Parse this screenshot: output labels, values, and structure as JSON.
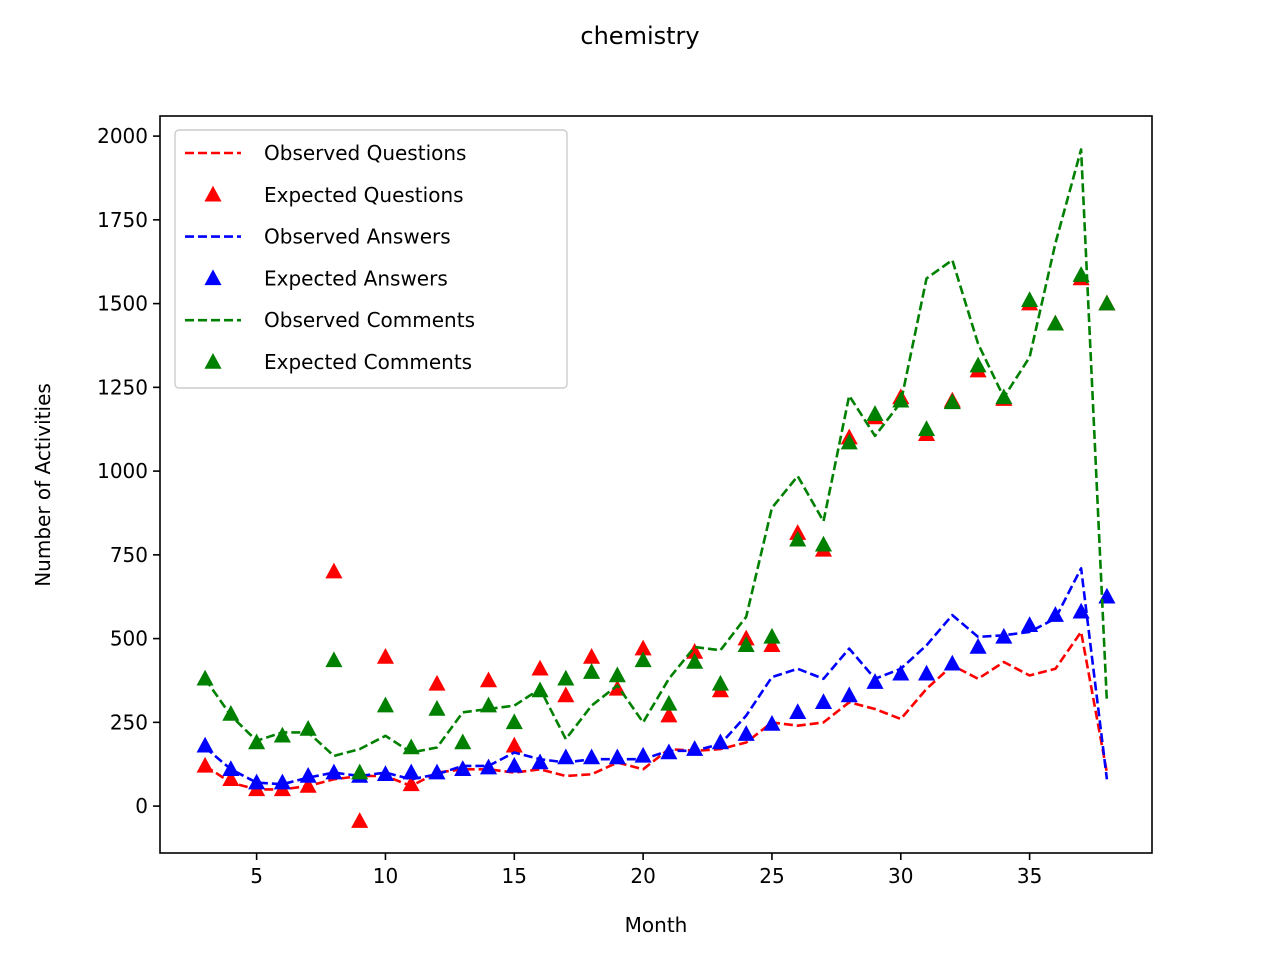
{
  "chart_data": {
    "type": "line",
    "title": "chemistry",
    "xlabel": "Month",
    "ylabel": "Number of Activities",
    "xlim": [
      1.25,
      39.75
    ],
    "ylim": [
      -140,
      2060
    ],
    "xticks": [
      5,
      10,
      15,
      20,
      25,
      30,
      35
    ],
    "yticks": [
      0,
      250,
      500,
      750,
      1000,
      1250,
      1500,
      1750,
      2000
    ],
    "grid": false,
    "legend_position": "upper-left",
    "x": [
      3,
      4,
      5,
      6,
      7,
      8,
      9,
      10,
      11,
      12,
      13,
      14,
      15,
      16,
      17,
      18,
      19,
      20,
      21,
      22,
      23,
      24,
      25,
      26,
      27,
      28,
      29,
      30,
      31,
      32,
      33,
      34,
      35,
      36,
      37,
      38
    ],
    "series": [
      {
        "name": "Observed Questions",
        "style": "dashed",
        "color": "#ff0000",
        "values": [
          120,
          70,
          50,
          50,
          60,
          80,
          90,
          90,
          60,
          100,
          110,
          110,
          100,
          110,
          90,
          95,
          130,
          110,
          170,
          165,
          170,
          190,
          250,
          240,
          250,
          310,
          290,
          260,
          350,
          420,
          380,
          430,
          390,
          410,
          520,
          100
        ]
      },
      {
        "name": "Expected Questions",
        "style": "triangle",
        "color": "#ff0000",
        "values": [
          120,
          80,
          50,
          50,
          60,
          700,
          -45,
          445,
          65,
          365,
          110,
          375,
          180,
          410,
          330,
          445,
          350,
          470,
          270,
          460,
          345,
          500,
          480,
          815,
          765,
          1100,
          1160,
          1220,
          1110,
          1210,
          1300,
          1215,
          1500,
          1440,
          1575,
          1500
        ]
      },
      {
        "name": "Observed Answers",
        "style": "dashed",
        "color": "#0000ff",
        "values": [
          175,
          110,
          70,
          65,
          85,
          100,
          90,
          100,
          80,
          95,
          120,
          120,
          160,
          140,
          130,
          140,
          140,
          140,
          165,
          165,
          185,
          270,
          385,
          410,
          380,
          470,
          380,
          410,
          480,
          570,
          505,
          510,
          520,
          560,
          710,
          80
        ]
      },
      {
        "name": "Expected Answers",
        "style": "triangle",
        "color": "#0000ff",
        "values": [
          180,
          110,
          70,
          70,
          90,
          100,
          90,
          95,
          100,
          100,
          110,
          115,
          120,
          130,
          145,
          145,
          145,
          150,
          160,
          170,
          190,
          215,
          245,
          280,
          310,
          330,
          370,
          395,
          395,
          425,
          475,
          505,
          540,
          570,
          580,
          625
        ]
      },
      {
        "name": "Observed Comments",
        "style": "dashed",
        "color": "#008000",
        "values": [
          380,
          270,
          195,
          220,
          220,
          150,
          170,
          210,
          160,
          175,
          280,
          290,
          300,
          350,
          200,
          300,
          360,
          250,
          380,
          475,
          465,
          565,
          890,
          985,
          850,
          1225,
          1105,
          1205,
          1575,
          1630,
          1380,
          1220,
          1340,
          1680,
          1960,
          310
        ]
      },
      {
        "name": "Expected Comments",
        "style": "triangle",
        "color": "#008000",
        "values": [
          380,
          275,
          190,
          210,
          230,
          435,
          100,
          300,
          175,
          290,
          190,
          300,
          250,
          345,
          380,
          400,
          390,
          435,
          305,
          430,
          365,
          480,
          505,
          795,
          780,
          1085,
          1170,
          1210,
          1125,
          1205,
          1315,
          1220,
          1510,
          1440,
          1585,
          1500
        ]
      }
    ]
  }
}
